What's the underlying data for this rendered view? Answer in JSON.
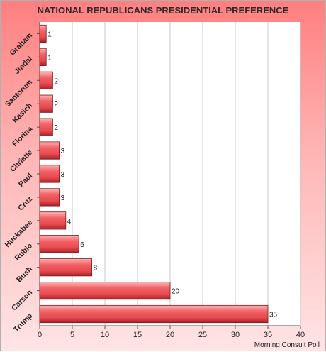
{
  "chart_data": {
    "type": "bar",
    "orientation": "horizontal",
    "title": "NATIONAL REPUBLICANS PRESIDENTIAL PREFERENCE",
    "categories": [
      "Graham",
      "Jindal",
      "Santorum",
      "Kasich",
      "Fiorina",
      "Christie",
      "Paul",
      "Cruz",
      "Huckabee",
      "Rubio",
      "Bush",
      "Carson",
      "Trump"
    ],
    "values": [
      1,
      1,
      2,
      2,
      2,
      3,
      3,
      3,
      4,
      6,
      8,
      20,
      35
    ],
    "xlim": [
      0,
      40
    ],
    "xticks": [
      0,
      5,
      10,
      15,
      20,
      25,
      30,
      35,
      40
    ],
    "grid": true,
    "bar_color": "#e84a4f",
    "source_note": "Morning Consult Poll"
  }
}
